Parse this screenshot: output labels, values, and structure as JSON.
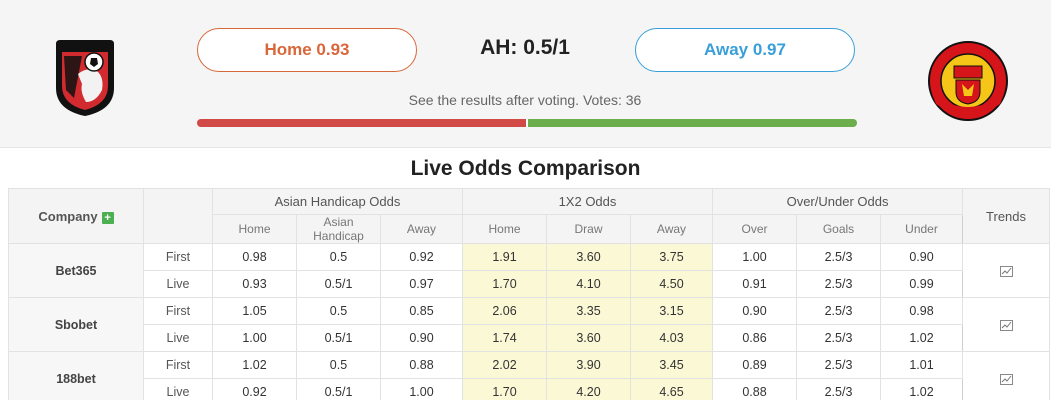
{
  "vote": {
    "home_label": "Home 0.93",
    "away_label": "Away 0.97",
    "ah_label": "AH: 0.5/1",
    "info": "See the results after voting. Votes: 36",
    "home_share": 0.5,
    "home_color": "#d24a47",
    "away_color": "#6cae4b"
  },
  "teams": {
    "home_logo_text": "AFC BOURNEMOUTH",
    "away_logo_text_top": "MANCHESTER",
    "away_logo_text_bottom": "UNITED"
  },
  "section_title": "Live Odds Comparison",
  "table": {
    "company_header": "Company",
    "company_icon": "plus-icon",
    "groups": [
      "Asian Handicap Odds",
      "1X2 Odds",
      "Over/Under Odds"
    ],
    "trends_header": "Trends",
    "sub_headers": [
      "Home",
      "Asian Handicap",
      "Away",
      "Home",
      "Draw",
      "Away",
      "Over",
      "Goals",
      "Under"
    ],
    "rows": [
      {
        "company": "Bet365",
        "first": {
          "label": "First",
          "values": [
            "0.98",
            "0.5",
            "0.92",
            "1.91",
            "3.60",
            "3.75",
            "1.00",
            "2.5/3",
            "0.90"
          ]
        },
        "live": {
          "label": "Live",
          "values": [
            "0.93",
            "0.5/1",
            "0.97",
            "1.70",
            "4.10",
            "4.50",
            "0.91",
            "2.5/3",
            "0.99"
          ]
        }
      },
      {
        "company": "Sbobet",
        "first": {
          "label": "First",
          "values": [
            "1.05",
            "0.5",
            "0.85",
            "2.06",
            "3.35",
            "3.15",
            "0.90",
            "2.5/3",
            "0.98"
          ]
        },
        "live": {
          "label": "Live",
          "values": [
            "1.00",
            "0.5/1",
            "0.90",
            "1.74",
            "3.60",
            "4.03",
            "0.86",
            "2.5/3",
            "1.02"
          ]
        }
      },
      {
        "company": "188bet",
        "first": {
          "label": "First",
          "values": [
            "1.02",
            "0.5",
            "0.88",
            "2.02",
            "3.90",
            "3.45",
            "0.89",
            "2.5/3",
            "1.01"
          ]
        },
        "live": {
          "label": "Live",
          "values": [
            "0.92",
            "0.5/1",
            "1.00",
            "1.70",
            "4.20",
            "4.65",
            "0.88",
            "2.5/3",
            "1.02"
          ]
        }
      }
    ]
  }
}
